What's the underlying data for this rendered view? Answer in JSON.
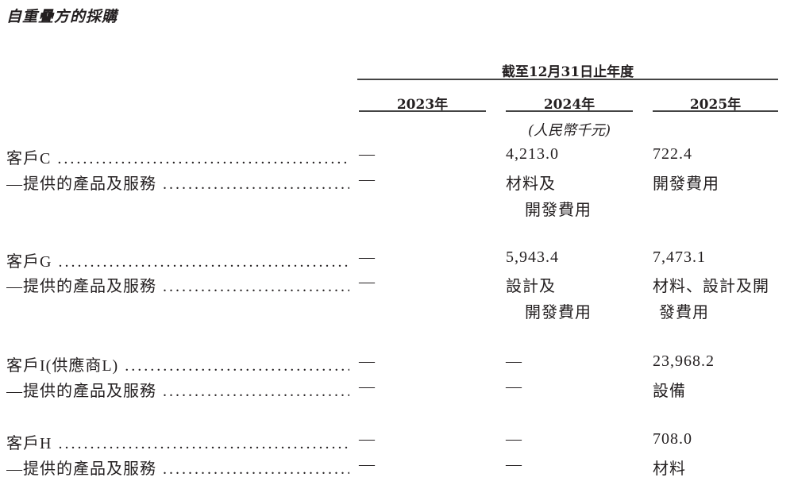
{
  "title": "自重疊方的採購",
  "header": {
    "period": "截至12月31日止年度",
    "years": [
      "2023年",
      "2024年",
      "2025年"
    ],
    "unit": "(人民幣千元)"
  },
  "rows": [
    {
      "label": "客戶C",
      "values": [
        "—",
        "4,213.0",
        "722.4"
      ]
    },
    {
      "label": "—提供的產品及服務",
      "values": [
        "—",
        "材料及",
        "開發費用"
      ],
      "cont": [
        "",
        "開發費用",
        ""
      ]
    },
    {
      "label": "客戶G",
      "values": [
        "—",
        "5,943.4",
        "7,473.1"
      ]
    },
    {
      "label": "—提供的產品及服務",
      "values": [
        "—",
        "設計及",
        "材料、設計及開"
      ],
      "cont": [
        "",
        "開發費用",
        "發費用"
      ]
    },
    {
      "label": "客戶I(供應商L)",
      "values": [
        "—",
        "—",
        "23,968.2"
      ]
    },
    {
      "label": "—提供的產品及服務",
      "values": [
        "—",
        "—",
        "設備"
      ]
    },
    {
      "label": "客戶H",
      "values": [
        "—",
        "—",
        "708.0"
      ]
    },
    {
      "label": "—提供的產品及服務",
      "values": [
        "—",
        "—",
        "材料"
      ]
    }
  ]
}
